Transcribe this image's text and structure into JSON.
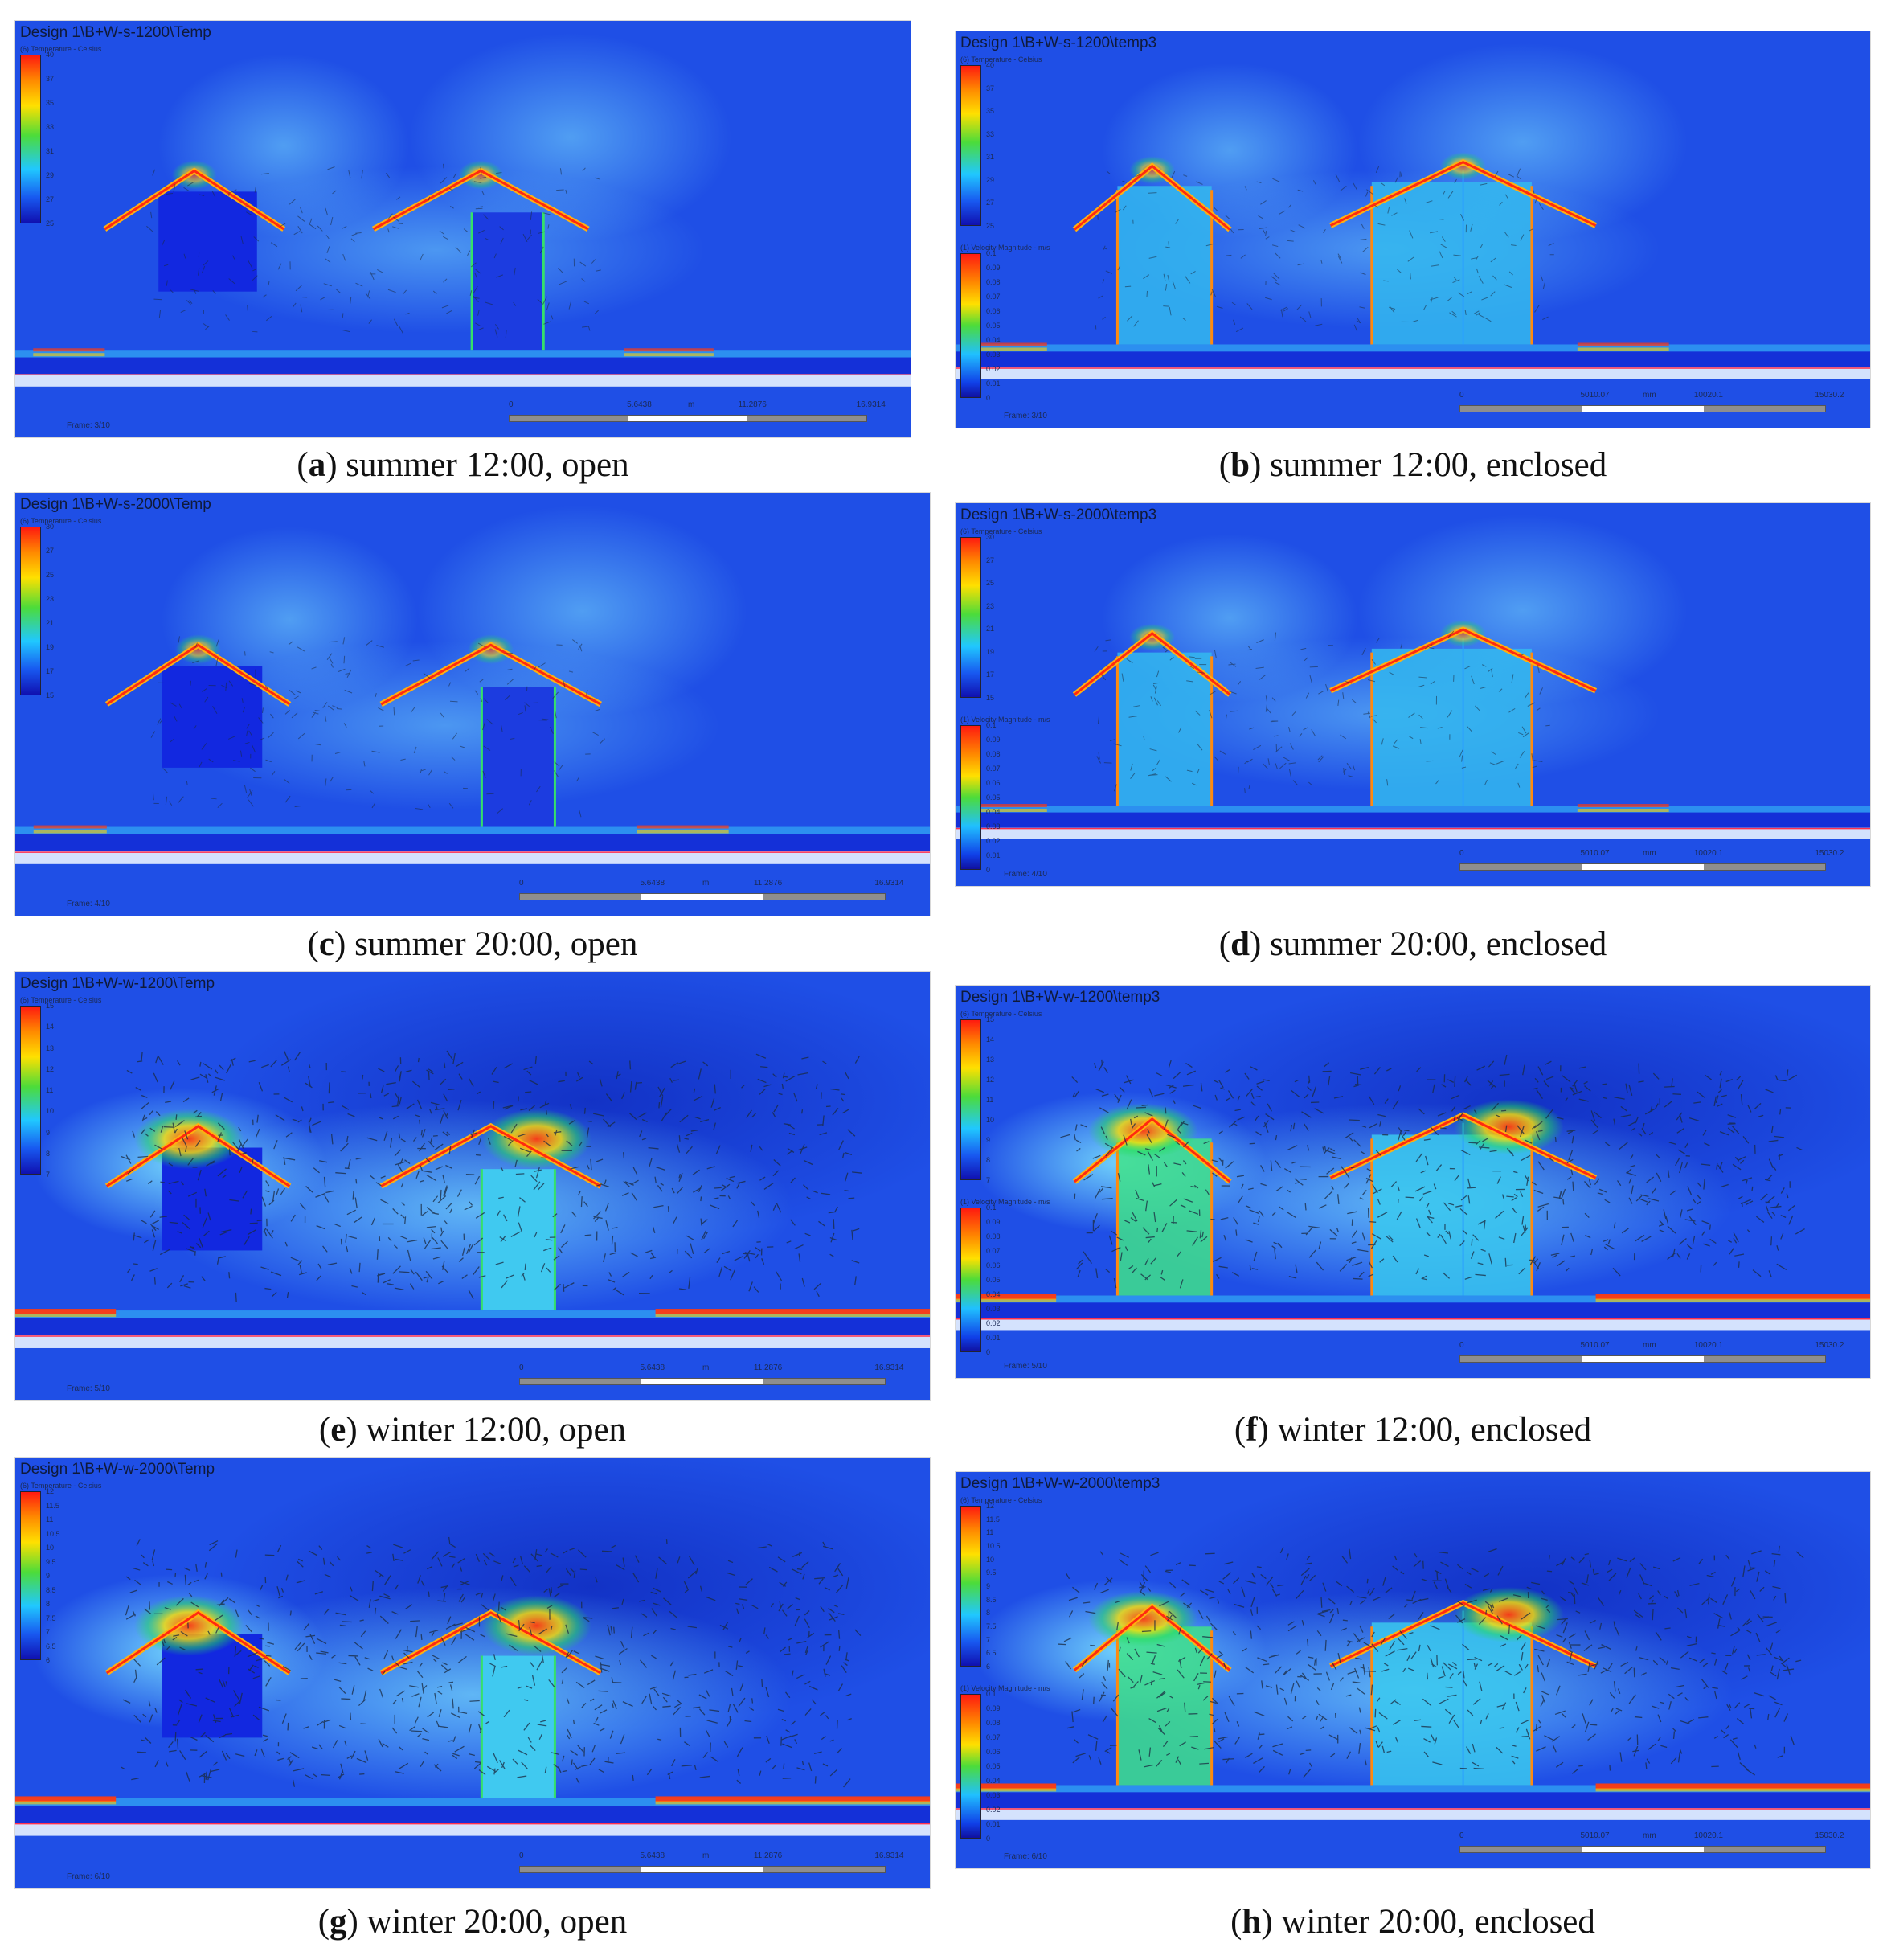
{
  "colors": {
    "background_blue": "#1f4fe6",
    "cold_blue": "#1a33d6",
    "warm_cyan": "#3ec3f0",
    "hot_red": "#ff2a10",
    "ground": "#1f3fe0"
  },
  "panels": [
    {
      "id": "a",
      "letter": "a",
      "caption_text": " summer 12:00, open",
      "title": "Design 1\\B+W-s-1200\\Temp",
      "legend_title": "(6) Temperature - Celsius",
      "legend_ticks": [
        "40",
        "37",
        "35",
        "33",
        "31",
        "29",
        "27",
        "25"
      ],
      "frame": "Frame: 3/10",
      "scale_labels": [
        "0",
        "5.6438",
        "m",
        "11.2876",
        "16.9314"
      ],
      "mode": "open",
      "season": "summer"
    },
    {
      "id": "b",
      "letter": "b",
      "caption_text": " summer 12:00, enclosed",
      "title": "Design 1\\B+W-s-1200\\temp3",
      "legend_title": "(6) Temperature - Celsius",
      "legend_ticks": [
        "40",
        "37",
        "35",
        "33",
        "31",
        "29",
        "27",
        "25"
      ],
      "velocity_title": "(1) Velocity Magnitude - m/s",
      "velocity_ticks": [
        "0.1",
        "0.09",
        "0.08",
        "0.07",
        "0.06",
        "0.05",
        "0.04",
        "0.03",
        "0.02",
        "0.01",
        "0"
      ],
      "frame": "Frame: 3/10",
      "scale_labels": [
        "0",
        "5010.07",
        "mm",
        "10020.1",
        "15030.2"
      ],
      "mode": "enclosed",
      "season": "summer"
    },
    {
      "id": "c",
      "letter": "c",
      "caption_text": " summer 20:00, open",
      "title": "Design 1\\B+W-s-2000\\Temp",
      "legend_title": "(6) Temperature - Celsius",
      "legend_ticks": [
        "30",
        "27",
        "25",
        "23",
        "21",
        "19",
        "17",
        "15"
      ],
      "frame": "Frame: 4/10",
      "scale_labels": [
        "0",
        "5.6438",
        "m",
        "11.2876",
        "16.9314"
      ],
      "mode": "open",
      "season": "summer"
    },
    {
      "id": "d",
      "letter": "d",
      "caption_text": " summer 20:00, enclosed",
      "title": "Design 1\\B+W-s-2000\\temp3",
      "legend_title": "(6) Temperature - Celsius",
      "legend_ticks": [
        "30",
        "27",
        "25",
        "23",
        "21",
        "19",
        "17",
        "15"
      ],
      "velocity_title": "(1) Velocity Magnitude - m/s",
      "velocity_ticks": [
        "0.1",
        "0.09",
        "0.08",
        "0.07",
        "0.06",
        "0.05",
        "0.04",
        "0.03",
        "0.02",
        "0.01",
        "0"
      ],
      "frame": "Frame: 4/10",
      "scale_labels": [
        "0",
        "5010.07",
        "mm",
        "10020.1",
        "15030.2"
      ],
      "mode": "enclosed",
      "season": "summer"
    },
    {
      "id": "e",
      "letter": "e",
      "caption_text": " winter 12:00, open",
      "title": "Design 1\\B+W-w-1200\\Temp",
      "legend_title": "(6) Temperature - Celsius",
      "legend_ticks": [
        "15",
        "14",
        "13",
        "12",
        "11",
        "10",
        "9",
        "8",
        "7"
      ],
      "frame": "Frame: 5/10",
      "scale_labels": [
        "0",
        "5.6438",
        "m",
        "11.2876",
        "16.9314"
      ],
      "mode": "open",
      "season": "winter"
    },
    {
      "id": "f",
      "letter": "f",
      "caption_text": " winter 12:00, enclosed",
      "title": "Design 1\\B+W-w-1200\\temp3",
      "legend_title": "(6) Temperature - Celsius",
      "legend_ticks": [
        "15",
        "14",
        "13",
        "12",
        "11",
        "10",
        "9",
        "8",
        "7"
      ],
      "velocity_title": "(1) Velocity Magnitude - m/s",
      "velocity_ticks": [
        "0.1",
        "0.09",
        "0.08",
        "0.07",
        "0.06",
        "0.05",
        "0.04",
        "0.03",
        "0.02",
        "0.01",
        "0"
      ],
      "frame": "Frame: 5/10",
      "scale_labels": [
        "0",
        "5010.07",
        "mm",
        "10020.1",
        "15030.2"
      ],
      "mode": "enclosed",
      "season": "winter"
    },
    {
      "id": "g",
      "letter": "g",
      "caption_text": " winter 20:00, open",
      "title": "Design 1\\B+W-w-2000\\Temp",
      "legend_title": "(6) Temperature - Celsius",
      "legend_ticks": [
        "12",
        "11.5",
        "11",
        "10.5",
        "10",
        "9.5",
        "9",
        "8.5",
        "8",
        "7.5",
        "7",
        "6.5",
        "6"
      ],
      "frame": "Frame: 6/10",
      "scale_labels": [
        "0",
        "5.6438",
        "m",
        "11.2876",
        "16.9314"
      ],
      "mode": "open",
      "season": "winter"
    },
    {
      "id": "h",
      "letter": "h",
      "caption_text": " winter 20:00, enclosed",
      "title": "Design 1\\B+W-w-2000\\temp3",
      "legend_title": "(6) Temperature - Celsius",
      "legend_ticks": [
        "12",
        "11.5",
        "11",
        "10.5",
        "10",
        "9.5",
        "9",
        "8.5",
        "8",
        "7.5",
        "7",
        "6.5",
        "6"
      ],
      "velocity_title": "(1) Velocity Magnitude - m/s",
      "velocity_ticks": [
        "0.1",
        "0.09",
        "0.08",
        "0.07",
        "0.06",
        "0.05",
        "0.04",
        "0.03",
        "0.02",
        "0.01",
        "0"
      ],
      "frame": "Frame: 6/10",
      "scale_labels": [
        "0",
        "5010.07",
        "mm",
        "10020.1",
        "15030.2"
      ],
      "mode": "enclosed",
      "season": "winter"
    }
  ]
}
